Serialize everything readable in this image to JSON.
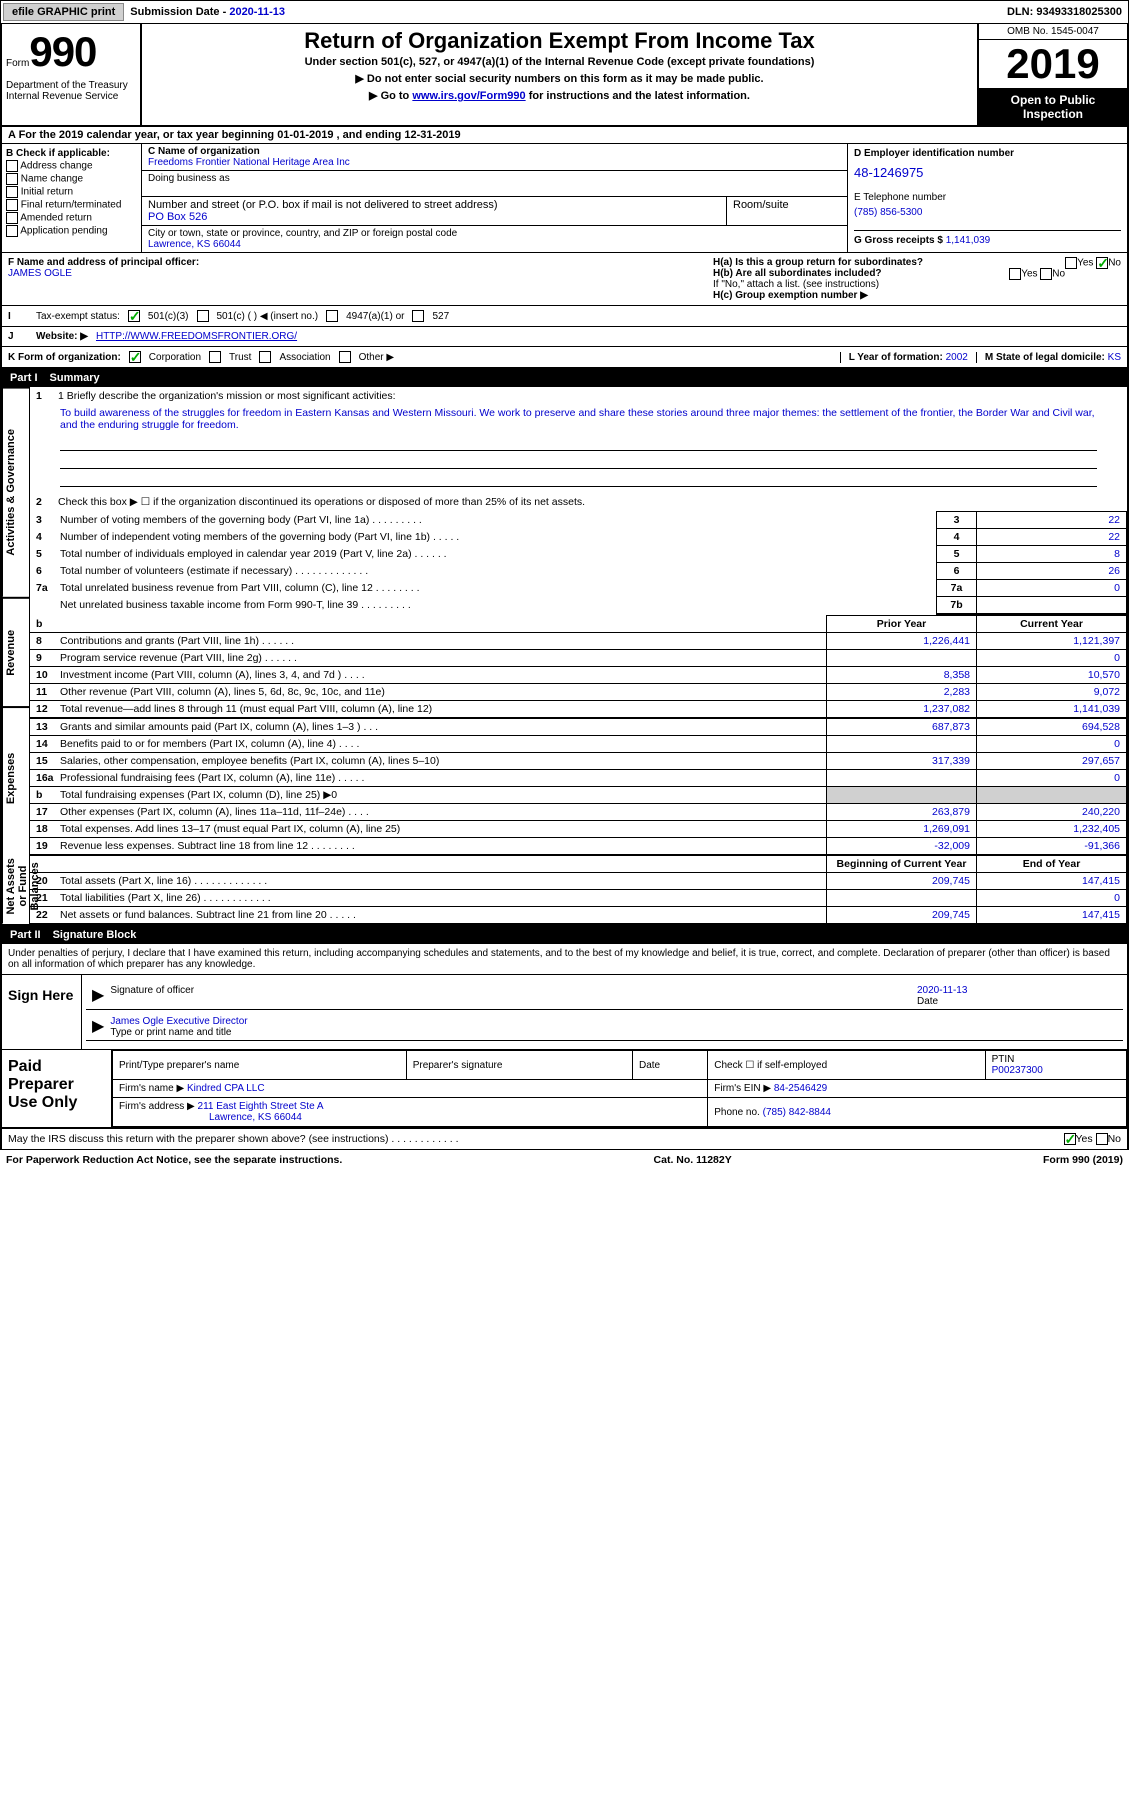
{
  "topbar": {
    "efile": "efile GRAPHIC print",
    "submission_label": "Submission Date - ",
    "submission_date": "2020-11-13",
    "dln_label": "DLN: ",
    "dln": "93493318025300"
  },
  "header": {
    "form_label": "Form",
    "form_number": "990",
    "dept": "Department of the Treasury\nInternal Revenue Service",
    "title": "Return of Organization Exempt From Income Tax",
    "sub": "Under section 501(c), 527, or 4947(a)(1) of the Internal Revenue Code (except private foundations)",
    "instr1": "▶ Do not enter social security numbers on this form as it may be made public.",
    "instr2_pre": "▶ Go to ",
    "instr2_link": "www.irs.gov/Form990",
    "instr2_post": " for instructions and the latest information.",
    "omb": "OMB No. 1545-0047",
    "year": "2019",
    "open": "Open to Public Inspection"
  },
  "rowA": "A For the 2019 calendar year, or tax year beginning 01-01-2019    , and ending 12-31-2019",
  "colB": {
    "label": "B Check if applicable:",
    "items": [
      "Address change",
      "Name change",
      "Initial return",
      "Final return/terminated",
      "Amended return",
      "Application pending"
    ]
  },
  "colC": {
    "name_label": "C Name of organization",
    "name": "Freedoms Frontier National Heritage Area Inc",
    "dba_label": "Doing business as",
    "addr_label": "Number and street (or P.O. box if mail is not delivered to street address)",
    "room_label": "Room/suite",
    "addr": "PO Box 526",
    "city_label": "City or town, state or province, country, and ZIP or foreign postal code",
    "city": "Lawrence, KS  66044"
  },
  "colD": {
    "ein_label": "D Employer identification number",
    "ein": "48-1246975",
    "phone_label": "E Telephone number",
    "phone": "(785) 856-5300",
    "gross_label": "G Gross receipts $ ",
    "gross": "1,141,039"
  },
  "officer": {
    "f_label": "F  Name and address of principal officer:",
    "name": "JAMES OGLE",
    "ha": "H(a)  Is this a group return for subordinates?",
    "hb": "H(b)  Are all subordinates included?",
    "hb_note": "If \"No,\" attach a list. (see instructions)",
    "hc": "H(c)  Group exemption number ▶",
    "yes": "Yes",
    "no": "No"
  },
  "taxExempt": {
    "label": "Tax-exempt status:",
    "opts": [
      "501(c)(3)",
      "501(c) (  ) ◀ (insert no.)",
      "4947(a)(1) or",
      "527"
    ]
  },
  "website": {
    "label_j": "J",
    "label": "Website: ▶",
    "url": "HTTP://WWW.FREEDOMSFRONTIER.ORG/"
  },
  "korg": {
    "label": "K Form of organization:",
    "opts": [
      "Corporation",
      "Trust",
      "Association",
      "Other ▶"
    ],
    "l_label": "L Year of formation: ",
    "l_val": "2002",
    "m_label": "M State of legal domicile: ",
    "m_val": "KS"
  },
  "part1": {
    "header": "Part I",
    "title": "Summary",
    "mission_label": "1  Briefly describe the organization's mission or most significant activities:",
    "mission": "To build awareness of the struggles for freedom in Eastern Kansas and Western Missouri. We work to preserve and share these stories around three major themes: the settlement of the frontier, the Border War and Civil war, and the enduring struggle for freedom.",
    "line2": "Check this box ▶ ☐  if the organization discontinued its operations or disposed of more than 25% of its net assets.",
    "sections": {
      "activities_label": "Activities & Governance",
      "revenue_label": "Revenue",
      "expenses_label": "Expenses",
      "netassets_label": "Net Assets or Fund Balances"
    },
    "simple_lines": [
      {
        "n": "3",
        "desc": "Number of voting members of the governing body (Part VI, line 1a)  .   .   .   .   .   .   .   .   .",
        "box": "3",
        "val": "22"
      },
      {
        "n": "4",
        "desc": "Number of independent voting members of the governing body (Part VI, line 1b)   .   .   .   .   .",
        "box": "4",
        "val": "22"
      },
      {
        "n": "5",
        "desc": "Total number of individuals employed in calendar year 2019 (Part V, line 2a)   .   .   .   .   .   .",
        "box": "5",
        "val": "8"
      },
      {
        "n": "6",
        "desc": "Total number of volunteers (estimate if necessary)    .   .   .   .   .   .   .   .   .   .   .   .   .",
        "box": "6",
        "val": "26"
      },
      {
        "n": "7a",
        "desc": "Total unrelated business revenue from Part VIII, column (C), line 12   .   .   .   .   .   .   .   .",
        "box": "7a",
        "val": "0"
      },
      {
        "n": "",
        "desc": "Net unrelated business taxable income from Form 990-T, line 39    .   .   .   .   .   .   .   .   .",
        "box": "7b",
        "val": ""
      }
    ],
    "two_col_header": {
      "b": "b",
      "prior": "Prior Year",
      "current": "Current Year"
    },
    "revenue_lines": [
      {
        "n": "8",
        "desc": "Contributions and grants (Part VIII, line 1h)   .   .   .   .   .   .",
        "py": "1,226,441",
        "cy": "1,121,397"
      },
      {
        "n": "9",
        "desc": "Program service revenue (Part VIII, line 2g)   .   .   .   .   .   .",
        "py": "",
        "cy": "0"
      },
      {
        "n": "10",
        "desc": "Investment income (Part VIII, column (A), lines 3, 4, and 7d )   .   .   .   .",
        "py": "8,358",
        "cy": "10,570"
      },
      {
        "n": "11",
        "desc": "Other revenue (Part VIII, column (A), lines 5, 6d, 8c, 9c, 10c, and 11e)",
        "py": "2,283",
        "cy": "9,072"
      },
      {
        "n": "12",
        "desc": "Total revenue—add lines 8 through 11 (must equal Part VIII, column (A), line 12)",
        "py": "1,237,082",
        "cy": "1,141,039"
      }
    ],
    "expense_lines": [
      {
        "n": "13",
        "desc": "Grants and similar amounts paid (Part IX, column (A), lines 1–3 )   .   .   .",
        "py": "687,873",
        "cy": "694,528"
      },
      {
        "n": "14",
        "desc": "Benefits paid to or for members (Part IX, column (A), line 4)   .   .   .   .",
        "py": "",
        "cy": "0"
      },
      {
        "n": "15",
        "desc": "Salaries, other compensation, employee benefits (Part IX, column (A), lines 5–10)",
        "py": "317,339",
        "cy": "297,657"
      },
      {
        "n": "16a",
        "desc": "Professional fundraising fees (Part IX, column (A), line 11e)   .   .   .   .   .",
        "py": "",
        "cy": "0"
      },
      {
        "n": "b",
        "desc": "Total fundraising expenses (Part IX, column (D), line 25) ▶0",
        "py": "shade",
        "cy": "shade"
      },
      {
        "n": "17",
        "desc": "Other expenses (Part IX, column (A), lines 11a–11d, 11f–24e)   .   .   .   .",
        "py": "263,879",
        "cy": "240,220"
      },
      {
        "n": "18",
        "desc": "Total expenses. Add lines 13–17 (must equal Part IX, column (A), line 25)",
        "py": "1,269,091",
        "cy": "1,232,405"
      },
      {
        "n": "19",
        "desc": "Revenue less expenses. Subtract line 18 from line 12 .   .   .   .   .   .   .   .",
        "py": "-32,009",
        "cy": "-91,366"
      }
    ],
    "net_header": {
      "begin": "Beginning of Current Year",
      "end": "End of Year"
    },
    "net_lines": [
      {
        "n": "20",
        "desc": "Total assets (Part X, line 16)   .   .   .   .   .   .   .   .   .   .   .   .   .",
        "py": "209,745",
        "cy": "147,415"
      },
      {
        "n": "21",
        "desc": "Total liabilities (Part X, line 26)   .   .   .   .   .   .   .   .   .   .   .   .",
        "py": "",
        "cy": "0"
      },
      {
        "n": "22",
        "desc": "Net assets or fund balances. Subtract line 21 from line 20   .   .   .   .   .",
        "py": "209,745",
        "cy": "147,415"
      }
    ]
  },
  "part2": {
    "header": "Part II",
    "title": "Signature Block",
    "declaration": "Under penalties of perjury, I declare that I have examined this return, including accompanying schedules and statements, and to the best of my knowledge and belief, it is true, correct, and complete. Declaration of preparer (other than officer) is based on all information of which preparer has any knowledge.",
    "sign_label": "Sign Here",
    "sig_officer": "Signature of officer",
    "sig_date": "2020-11-13",
    "date_label": "Date",
    "officer_name": "James Ogle  Executive Director",
    "type_label": "Type or print name and title",
    "paid_label": "Paid Preparer Use Only",
    "prep_name_label": "Print/Type preparer's name",
    "prep_sig_label": "Preparer's signature",
    "prep_date_label": "Date",
    "check_label": "Check ☐ if self-employed",
    "ptin_label": "PTIN",
    "ptin": "P00237300",
    "firm_name_label": "Firm's name    ▶",
    "firm_name": "Kindred CPA LLC",
    "firm_ein_label": "Firm's EIN ▶",
    "firm_ein": "84-2546429",
    "firm_addr_label": "Firm's address ▶",
    "firm_addr": "211 East Eighth Street Ste A",
    "firm_city": "Lawrence, KS  66044",
    "firm_phone_label": "Phone no. ",
    "firm_phone": "(785) 842-8844"
  },
  "discuss": "May the IRS discuss this return with the preparer shown above? (see instructions)   .   .   .   .   .   .   .   .   .   .   .   .",
  "footer": {
    "left": "For Paperwork Reduction Act Notice, see the separate instructions.",
    "center": "Cat. No. 11282Y",
    "right": "Form 990 (2019)"
  }
}
